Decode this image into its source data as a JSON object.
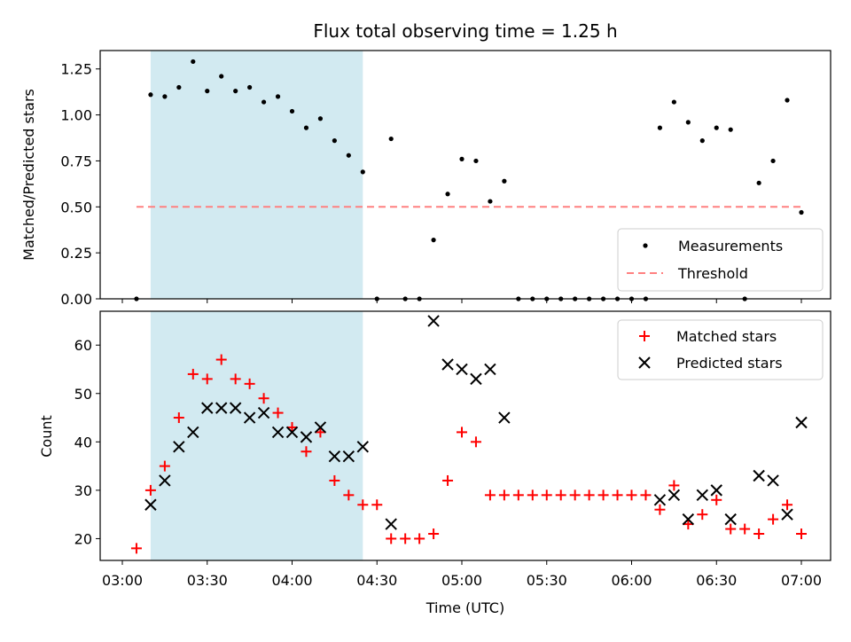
{
  "chart_data": {
    "title": "Flux total observing time = 1.25 h",
    "xlabel": "Time (UTC)",
    "x_range": [
      "03:00",
      "07:00"
    ],
    "xtick_labels": [
      "03:00",
      "03:30",
      "04:00",
      "04:30",
      "05:00",
      "05:30",
      "06:00",
      "06:30",
      "07:00"
    ],
    "highlight_span": {
      "start": "03:10",
      "end": "04:25",
      "color": "#add8e6"
    },
    "panels": [
      {
        "type": "scatter",
        "ylabel": "Matched/Predicted stars",
        "ylim": [
          0,
          1.35
        ],
        "ytick_labels": [
          "0.00",
          "0.25",
          "0.50",
          "0.75",
          "1.00",
          "1.25"
        ],
        "legend_position": "lower-right",
        "series": [
          {
            "name": "Measurements",
            "marker": "dot",
            "color": "#000000",
            "x": [
              "03:05",
              "03:10",
              "03:15",
              "03:20",
              "03:25",
              "03:30",
              "03:35",
              "03:40",
              "03:45",
              "03:50",
              "03:55",
              "04:00",
              "04:05",
              "04:10",
              "04:15",
              "04:20",
              "04:25",
              "04:30",
              "04:35",
              "04:40",
              "04:45",
              "04:50",
              "04:55",
              "05:00",
              "05:05",
              "05:10",
              "05:15",
              "05:20",
              "05:25",
              "05:30",
              "05:35",
              "05:40",
              "05:45",
              "05:50",
              "05:55",
              "06:00",
              "06:05",
              "06:10",
              "06:15",
              "06:20",
              "06:25",
              "06:30",
              "06:35",
              "06:40",
              "06:45",
              "06:50",
              "06:55",
              "07:00"
            ],
            "y": [
              0,
              1.11,
              1.1,
              1.15,
              1.29,
              1.13,
              1.21,
              1.13,
              1.15,
              1.07,
              1.1,
              1.02,
              0.93,
              0.98,
              0.86,
              0.78,
              0.69,
              0,
              0.87,
              0,
              0,
              0.32,
              0.57,
              0.76,
              0.75,
              0.53,
              0.64,
              0,
              0,
              0,
              0,
              0,
              0,
              0,
              0,
              0,
              0,
              0.93,
              1.07,
              0.96,
              0.86,
              0.93,
              0.92,
              0,
              0.63,
              0.75,
              1.08,
              0.47
            ]
          },
          {
            "name": "Threshold",
            "type": "line",
            "style": "dashed",
            "color": "#ff8080",
            "x": [
              "03:05",
              "07:00"
            ],
            "y": [
              0.5,
              0.5
            ]
          }
        ]
      },
      {
        "type": "scatter",
        "ylabel": "Count",
        "ylim": [
          15.5,
          67
        ],
        "ytick_labels": [
          "20",
          "30",
          "40",
          "50",
          "60"
        ],
        "legend_position": "upper-right",
        "series": [
          {
            "name": "Matched stars",
            "marker": "plus",
            "color": "#ff0000",
            "x": [
              "03:05",
              "03:10",
              "03:15",
              "03:20",
              "03:25",
              "03:30",
              "03:35",
              "03:40",
              "03:45",
              "03:50",
              "03:55",
              "04:00",
              "04:05",
              "04:10",
              "04:15",
              "04:20",
              "04:25",
              "04:30",
              "04:35",
              "04:40",
              "04:45",
              "04:50",
              "04:55",
              "05:00",
              "05:05",
              "05:10",
              "05:15",
              "05:20",
              "05:25",
              "05:30",
              "05:35",
              "05:40",
              "05:45",
              "05:50",
              "05:55",
              "06:00",
              "06:05",
              "06:10",
              "06:15",
              "06:20",
              "06:25",
              "06:30",
              "06:35",
              "06:40",
              "06:45",
              "06:50",
              "06:55",
              "07:00"
            ],
            "y": [
              18,
              30,
              35,
              45,
              54,
              53,
              57,
              53,
              52,
              49,
              46,
              43,
              38,
              42,
              32,
              29,
              27,
              27,
              20,
              20,
              20,
              21,
              32,
              42,
              40,
              29,
              29,
              29,
              29,
              29,
              29,
              29,
              29,
              29,
              29,
              29,
              29,
              26,
              31,
              23,
              25,
              28,
              22,
              22,
              21,
              24,
              27,
              21
            ]
          },
          {
            "name": "Predicted stars",
            "marker": "x",
            "color": "#000000",
            "x": [
              "03:10",
              "03:15",
              "03:20",
              "03:25",
              "03:30",
              "03:35",
              "03:40",
              "03:45",
              "03:50",
              "03:55",
              "04:00",
              "04:05",
              "04:10",
              "04:15",
              "04:20",
              "04:25",
              "04:35",
              "04:50",
              "04:55",
              "05:00",
              "05:05",
              "05:10",
              "05:15",
              "06:10",
              "06:15",
              "06:20",
              "06:25",
              "06:30",
              "06:35",
              "06:45",
              "06:50",
              "06:55",
              "07:00"
            ],
            "y": [
              27,
              32,
              39,
              42,
              47,
              47,
              47,
              45,
              46,
              42,
              42,
              41,
              43,
              37,
              37,
              39,
              23,
              65,
              56,
              55,
              53,
              55,
              45,
              28,
              29,
              24,
              29,
              30,
              24,
              33,
              32,
              25,
              44
            ]
          }
        ]
      }
    ]
  }
}
